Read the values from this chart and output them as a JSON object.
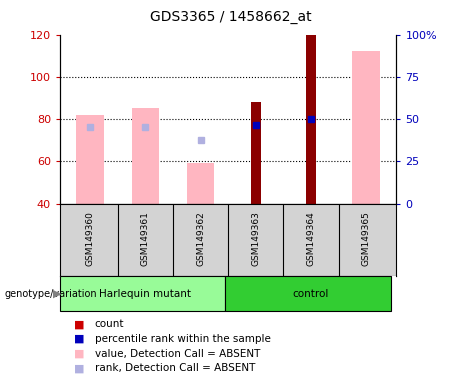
{
  "title": "GDS3365 / 1458662_at",
  "samples": [
    "GSM149360",
    "GSM149361",
    "GSM149362",
    "GSM149363",
    "GSM149364",
    "GSM149365"
  ],
  "ylim_left": [
    40,
    120
  ],
  "ylim_right": [
    0,
    100
  ],
  "yticks_left": [
    40,
    60,
    80,
    100,
    120
  ],
  "ytick_labels_left": [
    "40",
    "60",
    "80",
    "100",
    "120"
  ],
  "yticks_right_vals": [
    0,
    25,
    50,
    75,
    100
  ],
  "ytick_labels_right": [
    "0",
    "25",
    "50",
    "75",
    "100%"
  ],
  "gridlines": [
    60,
    80,
    100
  ],
  "bar_bottom": 40,
  "pink_bars": {
    "GSM149360": 82,
    "GSM149361": 85,
    "GSM149362": 59,
    "GSM149365": 112
  },
  "rank_dots_absent": {
    "GSM149360": 76,
    "GSM149361": 76,
    "GSM149362": 70
  },
  "dark_red_bars": {
    "GSM149363": 88,
    "GSM149364": 120
  },
  "blue_squares": {
    "GSM149363": 77,
    "GSM149364": 80
  },
  "pink_bar_color": "#ffb6c1",
  "rank_dot_color": "#b0b0e0",
  "dark_red_color": "#8b0000",
  "blue_square_color": "#0000bb",
  "bar_width": 0.5,
  "dark_red_bar_width": 0.18,
  "legend_items": [
    {
      "label": "count",
      "color": "#cc0000"
    },
    {
      "label": "percentile rank within the sample",
      "color": "#0000bb"
    },
    {
      "label": "value, Detection Call = ABSENT",
      "color": "#ffb6c1"
    },
    {
      "label": "rank, Detection Call = ABSENT",
      "color": "#b0b0e0"
    }
  ],
  "left_axis_color": "#cc0000",
  "right_axis_color": "#0000bb",
  "bg_color": "#ffffff",
  "sample_bg_color": "#d3d3d3",
  "group1_color": "#98fb98",
  "group2_color": "#32cd32",
  "group1_label": "Harlequin mutant",
  "group2_label": "control",
  "genotype_label": "genotype/variation"
}
